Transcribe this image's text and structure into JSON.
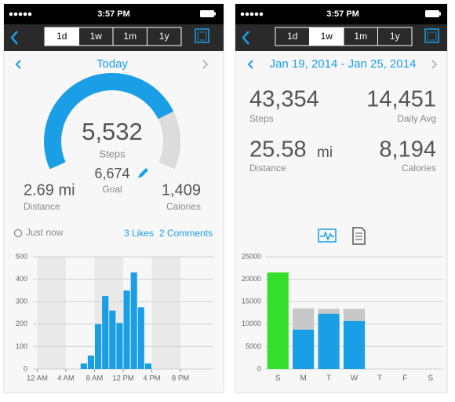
{
  "screens": [
    {
      "status_time": "3:57 PM",
      "segments": [
        "1d",
        "1w",
        "1m",
        "1y"
      ],
      "selected_segment": 0,
      "period": "Today",
      "main_value": "5,532",
      "main_label": "Steps",
      "goal_value": "6,674",
      "goal_label": "Goal",
      "left_value": "2.69 mi",
      "left_label": "Distance",
      "right_value": "1,409",
      "right_label": "Calories",
      "updated": "Just now",
      "likes": "3 Likes",
      "comments": "2 Comments"
    },
    {
      "status_time": "3:57 PM",
      "segments": [
        "1d",
        "1w",
        "1m",
        "1y"
      ],
      "selected_segment": 1,
      "period": "Jan 19, 2014 - Jan 25, 2014",
      "stats": [
        {
          "value": "43,354",
          "label": "Steps"
        },
        {
          "value": "14,451",
          "label": "Daily Avg"
        },
        {
          "value": "25.58",
          "unit": "mi",
          "label": "Distance"
        },
        {
          "value": "8,194",
          "label": "Calories"
        }
      ]
    }
  ],
  "chart_data": [
    {
      "type": "histogram",
      "bins": [
        6,
        7,
        8,
        9,
        10,
        11,
        12,
        13,
        14,
        15,
        16
      ],
      "values": [
        25,
        60,
        200,
        325,
        260,
        205,
        350,
        430,
        275,
        25
      ],
      "color": "#1a9fe6",
      "band_color": "#e9e9e9",
      "xlim": [
        -0.6,
        24.6
      ],
      "xticks": [
        {
          "value": 0,
          "label": "12 AM"
        },
        {
          "value": 4,
          "label": "4 AM"
        },
        {
          "value": 8,
          "label": "8 AM"
        },
        {
          "value": 12,
          "label": "12 PM"
        },
        {
          "value": 16,
          "label": "4 PM"
        },
        {
          "value": 20,
          "label": "8 PM"
        }
      ],
      "ylim": [
        0,
        500
      ],
      "yticks": [
        0,
        100,
        200,
        300,
        400,
        500
      ],
      "grid": true
    },
    {
      "type": "stacked_bar",
      "categories": [
        "S",
        "M",
        "T",
        "W",
        "T",
        "F",
        "S"
      ],
      "series": [
        {
          "color": "#1a9fe6",
          "colors": [
            "#35e02d",
            "#1a9fe6",
            "#1a9fe6",
            "#1a9fe6",
            "#1a9fe6",
            "#1a9fe6",
            "#1a9fe6"
          ],
          "values": [
            21500,
            8800,
            12300,
            10700,
            null,
            null,
            null
          ]
        },
        {
          "color": "#c8c8c8",
          "values": [
            null,
            4700,
            1100,
            2700,
            null,
            null,
            null
          ]
        }
      ],
      "ylim": [
        0,
        25000
      ],
      "yticks": [
        0,
        5000,
        10000,
        15000,
        20000,
        25000
      ],
      "grid": true
    }
  ]
}
